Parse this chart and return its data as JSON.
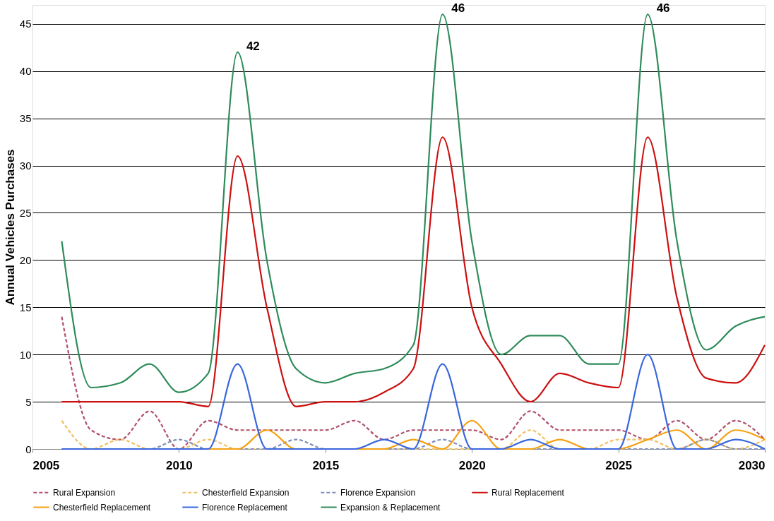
{
  "chart_data": {
    "type": "line",
    "ylabel": "Annual Vehicles Purchases",
    "x": [
      2006,
      2007,
      2008,
      2009,
      2010,
      2011,
      2012,
      2013,
      2014,
      2015,
      2016,
      2017,
      2018,
      2019,
      2020,
      2021,
      2022,
      2023,
      2024,
      2025,
      2026,
      2027,
      2028,
      2029,
      2030
    ],
    "series": [
      {
        "name": "Rural Expansion",
        "color": "#b0506a",
        "line_style": "dashed",
        "values": [
          14,
          2,
          1,
          4,
          0,
          3,
          2,
          2,
          2,
          2,
          3,
          1,
          2,
          2,
          2,
          1,
          4,
          2,
          2,
          2,
          1,
          3,
          1,
          3,
          1
        ]
      },
      {
        "name": "Chesterfield Expansion",
        "color": "#f0c060",
        "line_style": "dashed",
        "values": [
          3,
          0,
          1,
          0,
          0,
          1,
          0,
          0,
          0,
          0,
          0,
          0,
          0,
          0,
          0,
          0,
          2,
          0,
          0,
          1,
          1,
          0,
          1,
          0,
          1
        ]
      },
      {
        "name": "Florence Expansion",
        "color": "#7f8fb8",
        "line_style": "dashed",
        "values": [
          0,
          0,
          0,
          0,
          1,
          0,
          0,
          0,
          1,
          0,
          0,
          0,
          0,
          1,
          0,
          0,
          0,
          0,
          0,
          0,
          0,
          0,
          1,
          0,
          0
        ]
      },
      {
        "name": "Rural Replacement",
        "color": "#cc1010",
        "line_style": "solid",
        "values": [
          5,
          5,
          5,
          5,
          5,
          4.5,
          31,
          15,
          4.5,
          5,
          5,
          6,
          8.5,
          33,
          15,
          9,
          5,
          8,
          7,
          6.5,
          33,
          16,
          7.5,
          7,
          11
        ]
      },
      {
        "name": "Chesterfield Replacement",
        "color": "#f5a010",
        "line_style": "solid",
        "values": [
          null,
          null,
          null,
          null,
          0,
          0,
          0,
          2,
          0,
          0,
          0,
          0,
          1,
          0,
          3,
          0,
          0,
          1,
          0,
          0,
          1,
          2,
          0,
          2,
          1
        ]
      },
      {
        "name": "Florence Replacement",
        "color": "#3a66dd",
        "line_style": "solid",
        "values": [
          0,
          0,
          0,
          0,
          0,
          0,
          9,
          0,
          0,
          0,
          0,
          1,
          0,
          9,
          0,
          0,
          1,
          0,
          0,
          0,
          10,
          0,
          0,
          1,
          0
        ]
      },
      {
        "name": "Expansion & Replacement",
        "color": "#2e8b5a",
        "line_style": "solid",
        "values": [
          22,
          6.5,
          7,
          9,
          6,
          8,
          42,
          20,
          8.5,
          7,
          8,
          8.5,
          11,
          46,
          22,
          10,
          12,
          12,
          9,
          9,
          46,
          22,
          10.5,
          13,
          14
        ]
      }
    ],
    "annotations": [
      {
        "text": "42",
        "x": 2012,
        "y": 42
      },
      {
        "text": "46",
        "x": 2019,
        "y": 46
      },
      {
        "text": "46",
        "x": 2026,
        "y": 46
      }
    ],
    "xlim": [
      2005,
      2030
    ],
    "xticks": [
      2005,
      2010,
      2015,
      2020,
      2025,
      2030
    ],
    "ylim": [
      0,
      47
    ],
    "yticks": [
      0,
      5,
      10,
      15,
      20,
      25,
      30,
      35,
      40,
      45
    ],
    "grid": "y",
    "legend": "bottom"
  }
}
